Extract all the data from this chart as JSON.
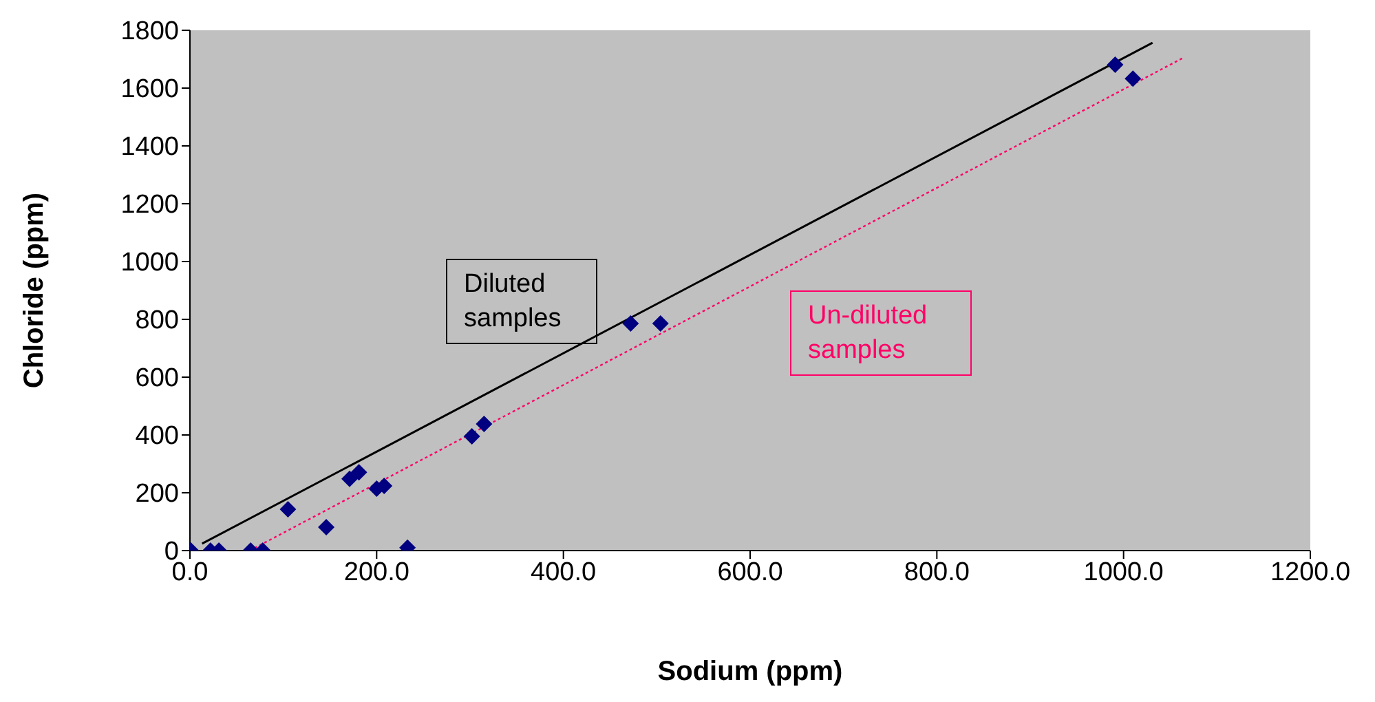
{
  "chart_data": {
    "type": "scatter",
    "xlabel": "Sodium (ppm)",
    "ylabel": "Chloride (ppm)",
    "xlim": [
      0,
      1200
    ],
    "xticks": [
      {
        "value": 0,
        "label": "0.0"
      },
      {
        "value": 200,
        "label": "200.0"
      },
      {
        "value": 400,
        "label": "400.0"
      },
      {
        "value": 600,
        "label": "600.0"
      },
      {
        "value": 800,
        "label": "800.0"
      },
      {
        "value": 1000,
        "label": "1000.0"
      },
      {
        "value": 1200,
        "label": "1200.0"
      }
    ],
    "ylim": [
      0,
      1800
    ],
    "yticks": [
      0,
      200,
      400,
      600,
      800,
      1000,
      1200,
      1400,
      1600,
      1800
    ],
    "grid": false,
    "marker": "diamond",
    "series": [
      {
        "color": "#000080",
        "x": [
          1,
          22,
          31,
          65,
          78,
          105,
          146,
          171,
          181,
          200,
          208,
          233,
          302,
          315,
          472,
          504,
          991,
          1010
        ],
        "values": [
          0,
          0,
          0,
          0,
          0,
          143,
          81,
          248,
          271,
          214,
          224,
          10,
          395,
          438,
          786,
          786,
          1681,
          1633
        ]
      },
      {
        "type": "line",
        "name": "Diluted samples",
        "color": "#000000",
        "line_style": "solid",
        "marker": "none",
        "x": [
          13,
          1031
        ],
        "values": [
          24,
          1757
        ]
      },
      {
        "type": "line",
        "name": "Un-diluted samples",
        "color": "#ff0066",
        "line_style": "dotted",
        "marker": "none",
        "x": [
          64,
          1064
        ],
        "values": [
          0,
          1705
        ]
      }
    ]
  }
}
